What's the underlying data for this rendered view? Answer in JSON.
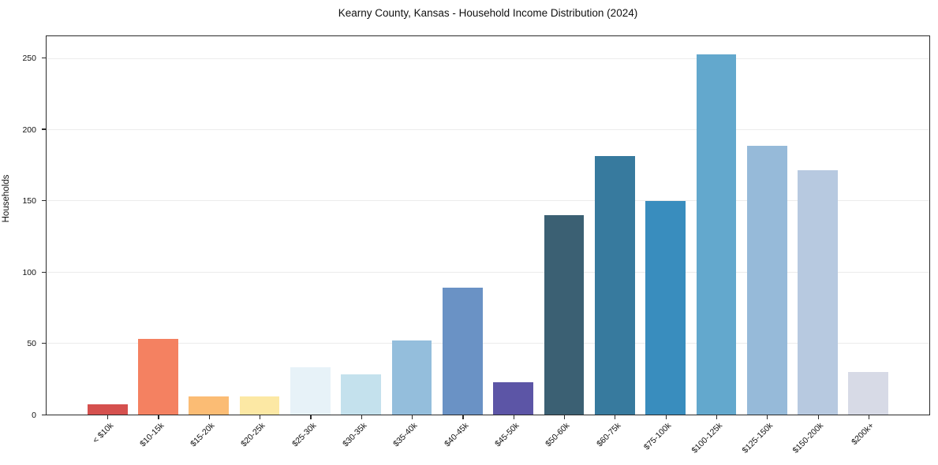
{
  "chart_data": {
    "type": "bar",
    "title": "Kearny County, Kansas - Household Income Distribution (2024)",
    "xlabel": "",
    "ylabel": "Households",
    "categories": [
      "< $10k",
      "$10-15k",
      "$15-20k",
      "$20-25k",
      "$25-30k",
      "$30-35k",
      "$35-40k",
      "$40-45k",
      "$45-50k",
      "$50-60k",
      "$60-75k",
      "$75-100k",
      "$100-125k",
      "$125-150k",
      "$150-200k",
      "$200k+"
    ],
    "values": [
      7,
      53,
      13,
      13,
      33,
      28,
      52,
      89,
      23,
      140,
      182,
      150,
      253,
      189,
      172,
      30
    ],
    "bar_colors": [
      "#d5504e",
      "#f48161",
      "#fbbc74",
      "#fce8a4",
      "#e7f2f8",
      "#c4e1ed",
      "#94bedc",
      "#6a92c5",
      "#5c55a6",
      "#3b6073",
      "#377a9e",
      "#398dbe",
      "#63a8cd",
      "#96bad9",
      "#b7c9e0",
      "#d7dae6"
    ],
    "yticks": [
      0,
      50,
      100,
      150,
      200,
      250
    ],
    "ylim": [
      0,
      266
    ],
    "grid": "horizontal",
    "gridline_color": "#ececec",
    "legend": "none",
    "background_color": "#ffffff"
  }
}
